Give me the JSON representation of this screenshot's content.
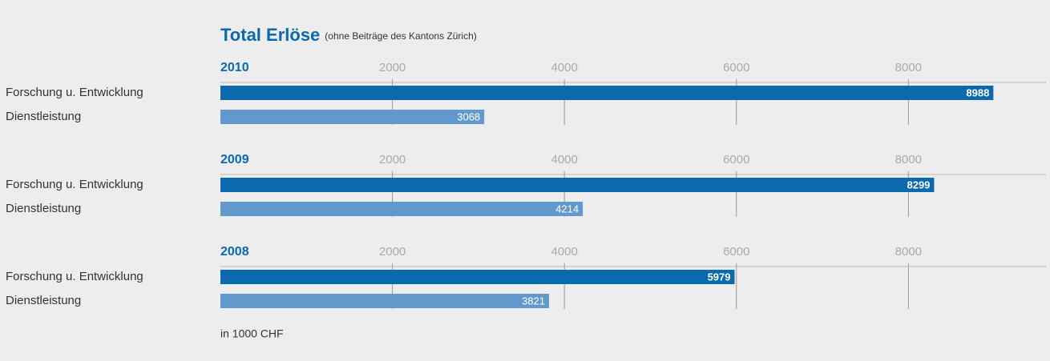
{
  "header": {
    "title": "Total Erlöse",
    "subtitle": "(ohne Beiträge des Kantons Zürich)"
  },
  "note": "in 1000 CHF",
  "chart_data": [
    {
      "type": "bar",
      "orientation": "horizontal",
      "title": "2010",
      "categories": [
        "Forschung u. Entwicklung",
        "Dienstleistung"
      ],
      "values": [
        8988,
        3068
      ],
      "colors": [
        "#0a6aad",
        "#6299cc"
      ],
      "xlim": [
        0,
        9600
      ],
      "xticks": [
        2000,
        4000,
        6000,
        8000
      ],
      "grid": true
    },
    {
      "type": "bar",
      "orientation": "horizontal",
      "title": "2009",
      "categories": [
        "Forschung u. Entwicklung",
        "Dienstleistung"
      ],
      "values": [
        8299,
        4214
      ],
      "colors": [
        "#0a6aad",
        "#6299cc"
      ],
      "xlim": [
        0,
        9600
      ],
      "xticks": [
        2000,
        4000,
        6000,
        8000
      ],
      "grid": true
    },
    {
      "type": "bar",
      "orientation": "horizontal",
      "title": "2008",
      "categories": [
        "Forschung u. Entwicklung",
        "Dienstleistung"
      ],
      "values": [
        5979,
        3821
      ],
      "colors": [
        "#0a6aad",
        "#6299cc"
      ],
      "xlim": [
        0,
        9600
      ],
      "xticks": [
        2000,
        4000,
        6000,
        8000
      ],
      "grid": true
    }
  ]
}
